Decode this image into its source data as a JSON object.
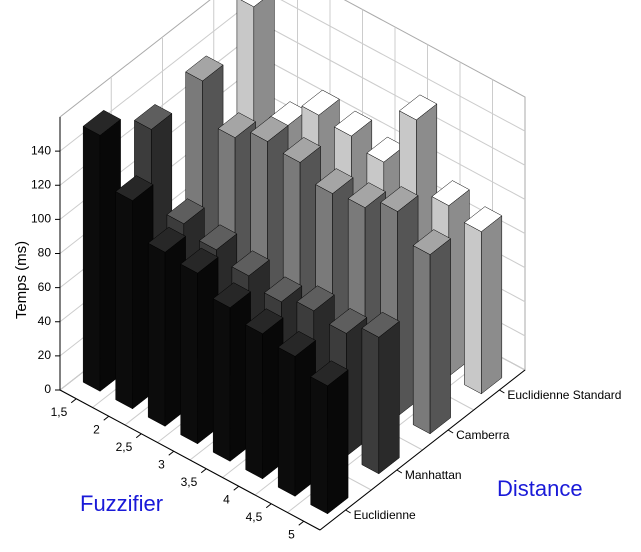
{
  "chart_data": {
    "type": "bar3d",
    "y_label": "Temps (ms)",
    "x_label": "Fuzzifier",
    "z_label": "Distance",
    "categories": [
      "1,5",
      "2",
      "2,5",
      "3",
      "3,5",
      "4",
      "4,5",
      "5"
    ],
    "depth_categories": [
      "Euclidienne",
      "Manhattan",
      "Camberra",
      "Euclidienne Standard"
    ],
    "series": [
      {
        "name": "Euclidienne",
        "color": "#0c0c0c",
        "values": [
          150,
          122,
          102,
          100,
          90,
          85,
          82,
          75
        ]
      },
      {
        "name": "Manhattan",
        "color": "#3c3c3c",
        "values": [
          130,
          85,
          80,
          75,
          70,
          75,
          72,
          80
        ]
      },
      {
        "name": "Camberra",
        "color": "#7a7a7a",
        "values": [
          135,
          112,
          120,
          118,
          110,
          112,
          120,
          105
        ]
      },
      {
        "name": "Euclidienne Standard",
        "color": "#c8c8c8",
        "values": [
          155,
          95,
          112,
          110,
          105,
          140,
          100,
          95
        ]
      }
    ],
    "ylim": [
      0,
      160
    ],
    "yticks": [
      0,
      20,
      40,
      60,
      80,
      100,
      120,
      140
    ],
    "grid": true
  }
}
